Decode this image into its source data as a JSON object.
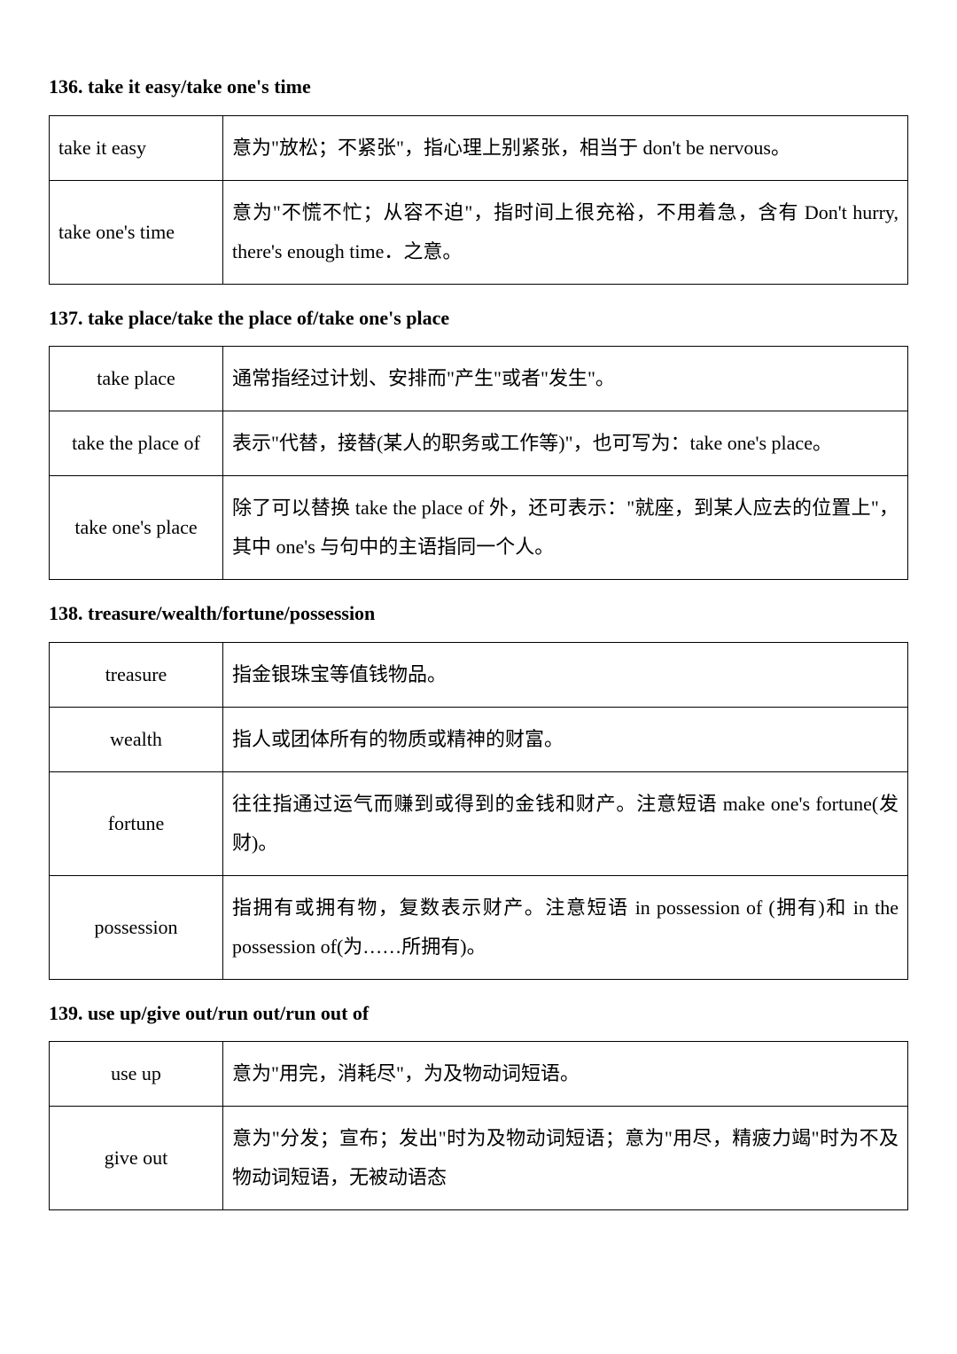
{
  "sections": [
    {
      "number": "136.",
      "title": "take it easy/take one's time",
      "termAlign": "left",
      "rows": [
        {
          "term": "take it easy",
          "def": "意为\"放松；不紧张\"，指心理上别紧张，相当于 don't be nervous。"
        },
        {
          "term": "take one's time",
          "def": "意为\"不慌不忙；从容不迫\"，指时间上很充裕，不用着急，含有 Don't hurry, there's enough time．之意。"
        }
      ]
    },
    {
      "number": "137.",
      "title": "take place/take the place of/take one's place",
      "termAlign": "center",
      "rows": [
        {
          "term": "take place",
          "def": "通常指经过计划、安排而\"产生\"或者\"发生\"。"
        },
        {
          "term": "take the place of",
          "def": "表示\"代替，接替(某人的职务或工作等)\"，也可写为：take one's place。"
        },
        {
          "term": "take one's place",
          "def": "除了可以替换 take the place of 外，还可表示：\"就座，到某人应去的位置上\"，其中 one's 与句中的主语指同一个人。"
        }
      ]
    },
    {
      "number": "138.",
      "title": "treasure/wealth/fortune/possession",
      "termAlign": "center",
      "rows": [
        {
          "term": "treasure",
          "def": "指金银珠宝等值钱物品。"
        },
        {
          "term": "wealth",
          "def": "指人或团体所有的物质或精神的财富。"
        },
        {
          "term": "fortune",
          "def": "往往指通过运气而赚到或得到的金钱和财产。注意短语 make one's fortune(发财)。"
        },
        {
          "term": "possession",
          "def": "指拥有或拥有物，复数表示财产。注意短语 in possession of (拥有)和 in the possession of(为……所拥有)。"
        }
      ]
    },
    {
      "number": "139.",
      "title": "use up/give out/run out/run out of",
      "termAlign": "center",
      "rows": [
        {
          "term": "use up",
          "def": "意为\"用完，消耗尽\"，为及物动词短语。"
        },
        {
          "term": "give out",
          "def": "意为\"分发；宣布；发出\"时为及物动词短语；意为\"用尽，精疲力竭\"时为不及物动词短语，无被动语态"
        }
      ]
    }
  ]
}
